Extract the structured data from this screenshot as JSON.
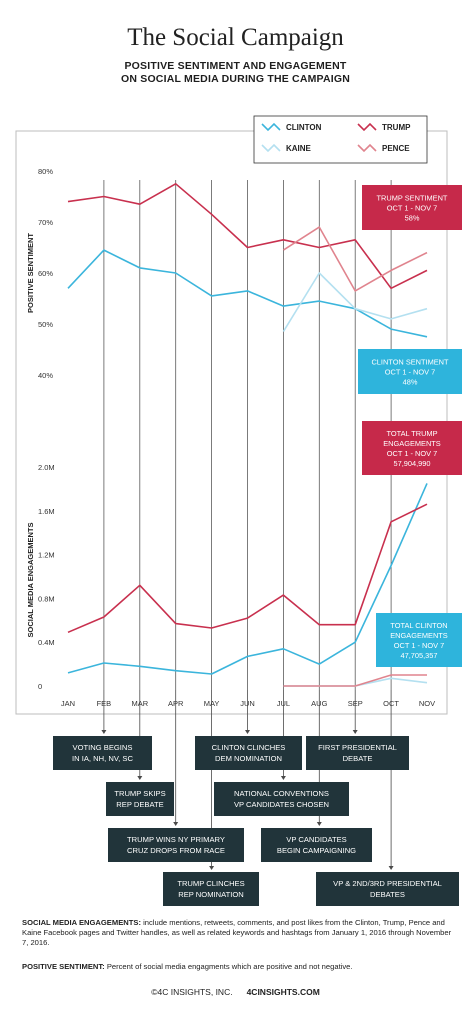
{
  "header": {
    "title": "The Social Campaign",
    "subtitle_line1": "POSITIVE SENTIMENT AND ENGAGEMENT",
    "subtitle_line2": "ON SOCIAL MEDIA DURING THE CAMPAIGN"
  },
  "colors": {
    "clinton": "#3bb5dc",
    "kaine": "#b4e0f0",
    "trump": "#c8304e",
    "pence": "#e0848e",
    "callout_trump": "#c6294a",
    "callout_clinton": "#2eb4dc",
    "event_box": "#21343a"
  },
  "chart_data": [
    {
      "type": "line",
      "title": "",
      "ylabel": "POSITIVE SENTIMENT",
      "ylim": [
        40,
        80
      ],
      "yticks": [
        "40%",
        "50%",
        "60%",
        "70%",
        "80%"
      ],
      "categories": [
        "JAN",
        "FEB",
        "MAR",
        "APR",
        "MAY",
        "JUN",
        "JUL",
        "AUG",
        "SEP",
        "OCT",
        "NOV"
      ],
      "legend_position": "top-right",
      "series": [
        {
          "name": "CLINTON",
          "color_key": "clinton",
          "values": [
            57,
            64.5,
            61,
            60,
            55.5,
            56.5,
            53.5,
            54.5,
            53,
            49,
            47.5
          ]
        },
        {
          "name": "TRUMP",
          "color_key": "trump",
          "values": [
            74,
            75,
            73.5,
            77.5,
            71.5,
            65,
            66.5,
            65,
            66.5,
            57,
            60.5
          ]
        },
        {
          "name": "KAINE",
          "color_key": "kaine",
          "values": [
            null,
            null,
            null,
            null,
            null,
            null,
            48.5,
            60,
            53,
            51,
            53
          ]
        },
        {
          "name": "PENCE",
          "color_key": "pence",
          "values": [
            null,
            null,
            null,
            null,
            null,
            null,
            64.5,
            69,
            56.5,
            60.5,
            64
          ]
        }
      ]
    },
    {
      "type": "line",
      "title": "",
      "ylabel": "SOCIAL MEDIA ENGAGEMENTS",
      "ylim": [
        0,
        2.0
      ],
      "yticks": [
        "0",
        "0.4M",
        "0.8M",
        "1.2M",
        "1.6M",
        "2.0M"
      ],
      "categories": [
        "JAN",
        "FEB",
        "MAR",
        "APR",
        "MAY",
        "JUN",
        "JUL",
        "AUG",
        "SEP",
        "OCT",
        "NOV"
      ],
      "series": [
        {
          "name": "CLINTON",
          "color_key": "clinton",
          "values": [
            0.12,
            0.21,
            0.18,
            0.14,
            0.11,
            0.27,
            0.34,
            0.2,
            0.4,
            1.1,
            1.85
          ]
        },
        {
          "name": "TRUMP",
          "color_key": "trump",
          "values": [
            0.49,
            0.63,
            0.92,
            0.57,
            0.53,
            0.62,
            0.83,
            0.56,
            0.56,
            1.5,
            1.66
          ]
        },
        {
          "name": "KAINE",
          "color_key": "kaine",
          "values": [
            null,
            null,
            null,
            null,
            null,
            null,
            0,
            0,
            0,
            0.07,
            0.03
          ]
        },
        {
          "name": "PENCE",
          "color_key": "pence",
          "values": [
            null,
            null,
            null,
            null,
            null,
            null,
            0,
            0,
            0,
            0.1,
            0.1
          ]
        }
      ]
    }
  ],
  "legend": [
    {
      "label": "CLINTON",
      "color_key": "clinton"
    },
    {
      "label": "TRUMP",
      "color_key": "trump"
    },
    {
      "label": "KAINE",
      "color_key": "kaine"
    },
    {
      "label": "PENCE",
      "color_key": "pence"
    }
  ],
  "callouts": [
    {
      "lines": [
        "TRUMP SENTIMENT",
        "OCT 1 - NOV 7",
        "58%"
      ],
      "color_key": "callout_trump"
    },
    {
      "lines": [
        "CLINTON SENTIMENT",
        "OCT 1 - NOV 7",
        "48%"
      ],
      "color_key": "callout_clinton"
    },
    {
      "lines": [
        "TOTAL TRUMP",
        "ENGAGEMENTS",
        "OCT 1 - NOV 7",
        "57,904,990"
      ],
      "color_key": "callout_trump"
    },
    {
      "lines": [
        "TOTAL CLINTON",
        "ENGAGEMENTS",
        "OCT 1 - NOV 7",
        "47,705,357"
      ],
      "color_key": "callout_clinton"
    }
  ],
  "events": [
    {
      "lines": [
        "VOTING BEGINS",
        "IN IA, NH, NV, SC"
      ],
      "month_index": 1
    },
    {
      "lines": [
        "TRUMP SKIPS",
        "REP DEBATE"
      ],
      "month_index": 2
    },
    {
      "lines": [
        "TRUMP WINS NY PRIMARY",
        "CRUZ DROPS FROM RACE"
      ],
      "month_index": 3
    },
    {
      "lines": [
        "TRUMP CLINCHES",
        "REP NOMINATION"
      ],
      "month_index": 4
    },
    {
      "lines": [
        "CLINTON CLINCHES",
        "DEM NOMINATION"
      ],
      "month_index": 5
    },
    {
      "lines": [
        "NATIONAL CONVENTIONS",
        "VP CANDIDATES CHOSEN"
      ],
      "month_index": 6
    },
    {
      "lines": [
        "FIRST PRESIDENTIAL",
        "DEBATE"
      ],
      "month_index": 8
    },
    {
      "lines": [
        "VP CANDIDATES",
        "BEGIN CAMPAIGNING"
      ],
      "month_index": 7
    },
    {
      "lines": [
        "VP & 2ND/3RD PRESIDENTIAL",
        "DEBATES"
      ],
      "month_index": 9
    }
  ],
  "footnotes": {
    "engagements_label": "SOCIAL MEDIA ENGAGEMENTS:",
    "engagements_text": " include mentions, retweets, comments, and post likes from the Clinton, Trump, Pence and Kaine Facebook pages and Twitter handles, as well as related keywords and hashtags from January 1, 2016 through November 7, 2016.",
    "sentiment_label": "POSITIVE SENTIMENT:",
    "sentiment_text": " Percent of social media engagments which are positive and not negative."
  },
  "credit": {
    "company": "©4C INSIGHTS, INC.",
    "site": "4CINSIGHTS.COM"
  }
}
